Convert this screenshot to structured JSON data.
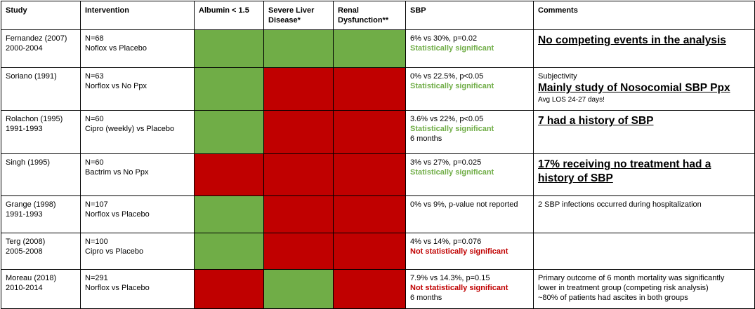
{
  "headers": {
    "study": "Study",
    "intervention": "Intervention",
    "albumin": "Albumin < 1.5",
    "severe_liver_1": "Severe Liver",
    "severe_liver_2": "Disease*",
    "renal_1": "Renal",
    "renal_2": "Dysfunction**",
    "sbp": "SBP",
    "comments": "Comments"
  },
  "colors": {
    "green": "#70ad47",
    "red": "#c00000"
  },
  "rows": [
    {
      "study": "Fernandez (2007)",
      "years": "2000-2004",
      "n": "N=68",
      "intervention": "Noflox vs Placebo",
      "albumin": "green",
      "liver": "green",
      "renal": "green",
      "sbp_result": "6% vs 30%, p=0.02",
      "sbp_sig": "Statistically significant",
      "sbp_extra": "",
      "comment_big": "No competing events in the analysis"
    },
    {
      "study": "Soriano (1991)",
      "years": "",
      "n": "N=63",
      "intervention": "Norflox vs No Ppx",
      "albumin": "green",
      "liver": "red",
      "renal": "red",
      "sbp_result": "0% vs 22.5%, p<0.05",
      "sbp_sig": "Statistically significant",
      "sbp_extra": "",
      "comment_pre": "Subjectivity",
      "comment_big": "Mainly study of Nosocomial SBP Ppx",
      "comment_post": "Avg LOS 24-27 days!"
    },
    {
      "study": "Rolachon (1995)",
      "years": "1991-1993",
      "n": "N=60",
      "intervention": "Cipro (weekly) vs Placebo",
      "albumin": "green",
      "liver": "red",
      "renal": "red",
      "sbp_result": "3.6% vs 22%, p<0.05",
      "sbp_sig": "Statistically significant",
      "sbp_extra": "6 months",
      "comment_big": "7 had a history of SBP"
    },
    {
      "study": "Singh (1995)",
      "years": "",
      "n": "N=60",
      "intervention": "Bactrim vs No Ppx",
      "albumin": "red",
      "liver": "red",
      "renal": "red",
      "sbp_result": "3% vs 27%, p=0.025",
      "sbp_sig": "Statistically significant",
      "sbp_extra": "",
      "comment_big": "17% receiving no treatment had a history of SBP"
    },
    {
      "study": "Grange (1998)",
      "years": "1991-1993",
      "n": "N=107",
      "intervention": "Norflox vs Placebo",
      "albumin": "green",
      "liver": "red",
      "renal": "red",
      "sbp_result": "0% vs 9%, p-value not reported",
      "sbp_sig": "",
      "sbp_extra": "",
      "comment_text": "2 SBP infections occurred during hospitalization"
    },
    {
      "study": "Terg (2008)",
      "years": "2005-2008",
      "n": "N=100",
      "intervention": "Cipro vs Placebo",
      "albumin": "green",
      "liver": "red",
      "renal": "red",
      "sbp_result": "4% vs 14%, p=0.076",
      "sbp_nonsig": "Not statistically significant",
      "sbp_extra": ""
    },
    {
      "study": "Moreau (2018)",
      "years": "2010-2014",
      "n": "N=291",
      "intervention": "Norflox vs Placebo",
      "albumin": "red",
      "liver": "green",
      "renal": "red",
      "sbp_result": "7.9% vs 14.3%, p=0.15",
      "sbp_nonsig": "Not statistically significant",
      "sbp_extra": "6 months",
      "comment_l1": "Primary outcome of 6 month mortality was significantly",
      "comment_l2": "lower in treatment group (competing risk analysis)",
      "comment_l3": "~80% of patients had ascites in both groups"
    }
  ]
}
